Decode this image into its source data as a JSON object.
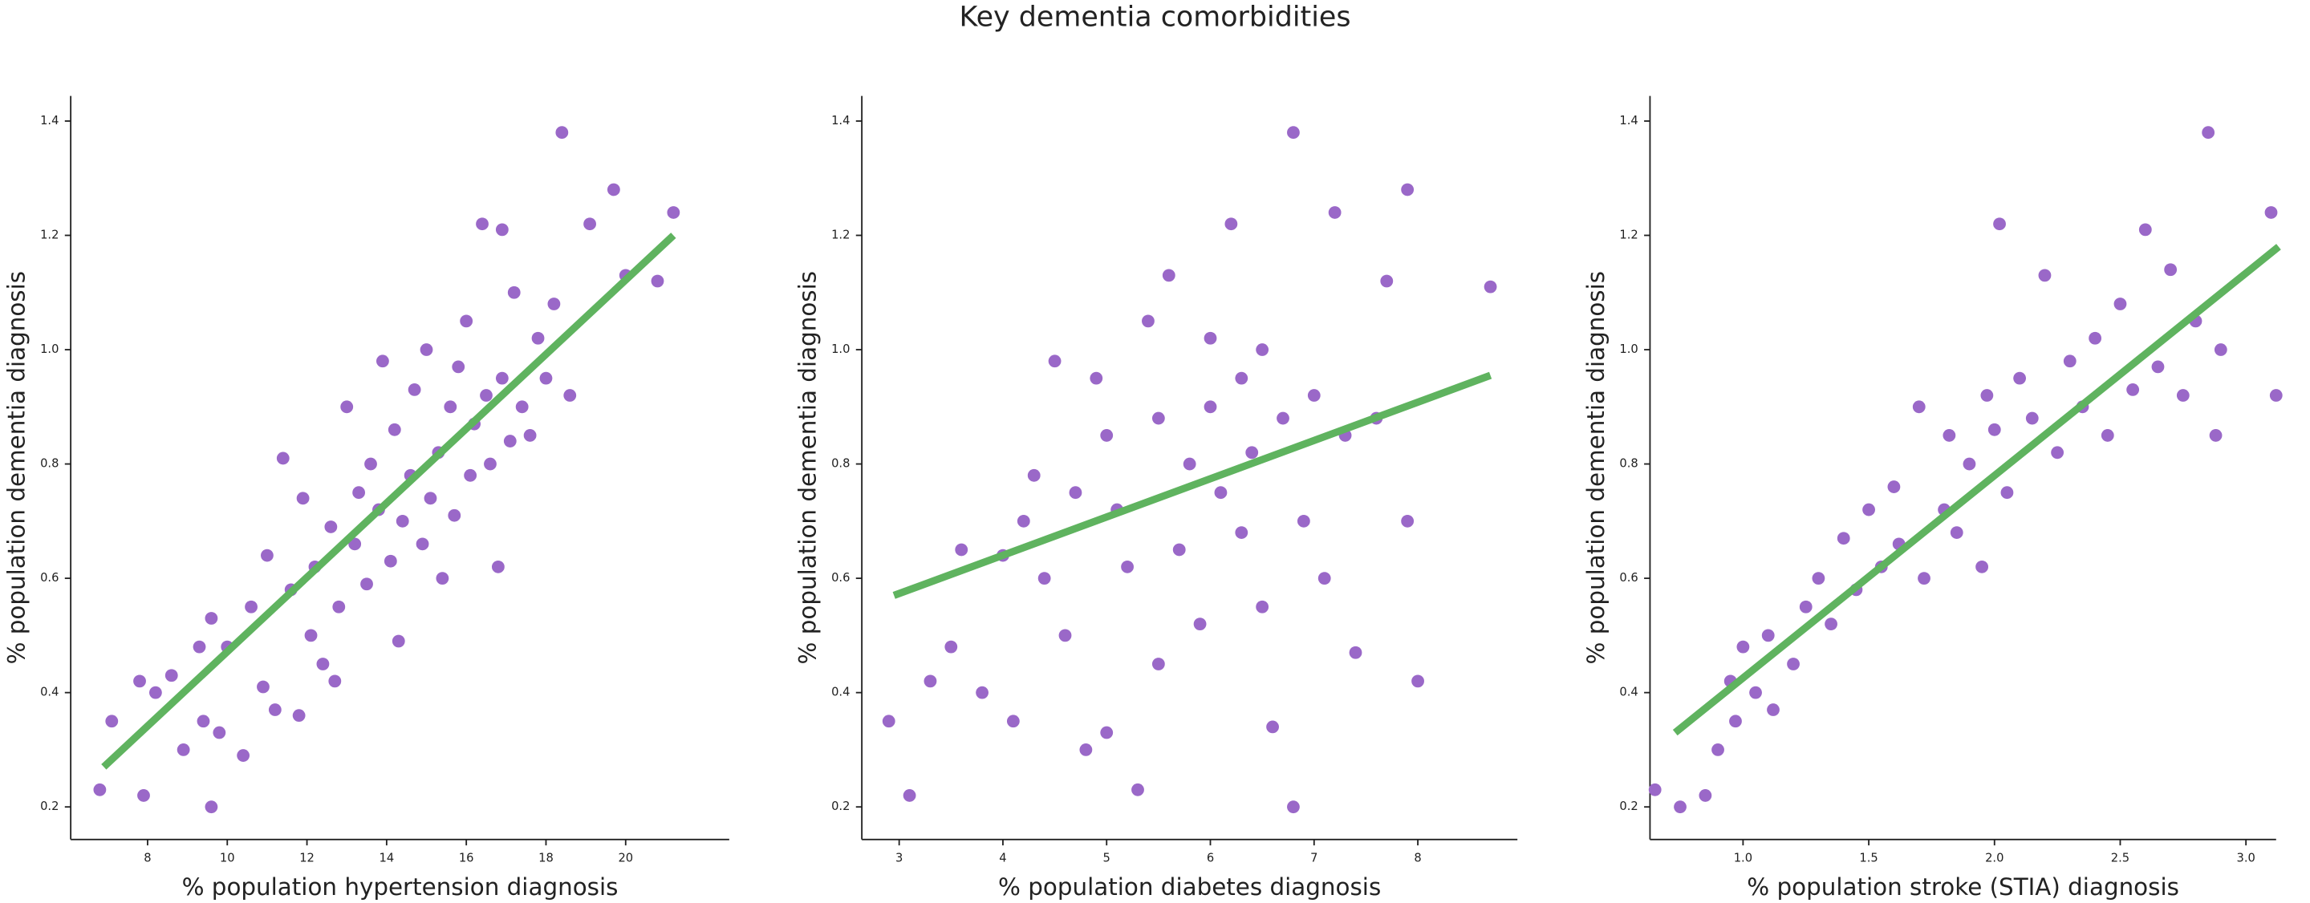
{
  "title": "Key dementia comorbidities",
  "chart_data": [
    {
      "type": "scatter",
      "xlabel": "% population hypertension diagnosis",
      "ylabel": "% population dementia diagnosis",
      "color": "#9a68c8",
      "x": [
        6.8,
        7.1,
        7.9,
        7.8,
        8.2,
        8.6,
        8.9,
        9.3,
        9.4,
        9.6,
        9.6,
        9.8,
        10,
        10.4,
        10.6,
        10.9,
        11,
        11.2,
        11.4,
        11.6,
        11.8,
        11.9,
        12.1,
        12.2,
        12.4,
        12.6,
        12.7,
        12.8,
        13,
        13.2,
        13.3,
        13.5,
        13.6,
        13.8,
        13.9,
        14.1,
        14.2,
        14.3,
        14.4,
        14.6,
        14.7,
        14.9,
        15,
        15.1,
        15.3,
        15.4,
        15.6,
        15.7,
        15.8,
        16,
        16.1,
        16.2,
        16.4,
        16.5,
        16.6,
        16.8,
        16.9,
        16.9,
        17.1,
        17.2,
        17.4,
        17.6,
        17.8,
        18,
        18.2,
        18.4,
        18.6,
        19.1,
        19.7,
        20,
        20.8,
        21.2
      ],
      "y": [
        0.23,
        0.35,
        0.22,
        0.42,
        0.4,
        0.43,
        0.3,
        0.48,
        0.35,
        0.2,
        0.53,
        0.33,
        0.48,
        0.29,
        0.55,
        0.41,
        0.64,
        0.37,
        0.81,
        0.58,
        0.36,
        0.74,
        0.5,
        0.62,
        0.45,
        0.69,
        0.42,
        0.55,
        0.9,
        0.66,
        0.75,
        0.59,
        0.8,
        0.72,
        0.98,
        0.63,
        0.86,
        0.49,
        0.7,
        0.78,
        0.93,
        0.66,
        1.0,
        0.74,
        0.82,
        0.6,
        0.9,
        0.71,
        0.97,
        1.05,
        0.78,
        0.87,
        1.22,
        0.92,
        0.8,
        0.62,
        1.21,
        0.95,
        0.84,
        1.1,
        0.9,
        0.85,
        1.02,
        0.95,
        1.08,
        1.38,
        0.92,
        1.22,
        1.28,
        1.13,
        1.12,
        1.24
      ],
      "trend": {
        "x": [
          6.9,
          21.2
        ],
        "y": [
          0.27,
          1.2
        ],
        "color": "#5fb35f"
      },
      "xlim": [
        6.07,
        22.6
      ],
      "xticks": [
        8,
        10,
        12,
        14,
        16,
        18,
        20
      ],
      "ylim": [
        0.143,
        1.444
      ],
      "yticks": [
        0.2,
        0.4,
        0.6,
        0.8,
        {
          "value": 1,
          "label": "1.0"
        },
        1.2,
        1.4
      ]
    },
    {
      "type": "scatter",
      "xlabel": "% population diabetes diagnosis",
      "ylabel": "% population dementia diagnosis",
      "color": "#9a68c8",
      "x": [
        2.9,
        3.1,
        3.3,
        3.5,
        3.6,
        3.8,
        4.0,
        4.1,
        4.2,
        4.3,
        4.4,
        4.5,
        4.6,
        4.7,
        4.8,
        4.9,
        5.0,
        5.0,
        5.1,
        5.2,
        5.3,
        5.4,
        5.5,
        5.5,
        5.6,
        5.7,
        5.8,
        5.9,
        6.0,
        6.0,
        6.1,
        6.2,
        6.3,
        6.3,
        6.4,
        6.5,
        6.5,
        6.6,
        6.7,
        6.8,
        6.8,
        6.9,
        7.0,
        7.1,
        7.2,
        7.3,
        7.4,
        7.6,
        7.7,
        7.9,
        7.9,
        8.0,
        8.7
      ],
      "y": [
        0.35,
        0.22,
        0.42,
        0.48,
        0.65,
        0.4,
        0.64,
        0.35,
        0.7,
        0.78,
        0.6,
        0.98,
        0.5,
        0.75,
        0.3,
        0.95,
        0.33,
        0.85,
        0.72,
        0.62,
        0.23,
        1.05,
        0.45,
        0.88,
        1.13,
        0.65,
        0.8,
        0.52,
        0.9,
        1.02,
        0.75,
        1.22,
        0.68,
        0.95,
        0.82,
        0.55,
        1.0,
        0.34,
        0.88,
        0.2,
        1.38,
        0.7,
        0.92,
        0.6,
        1.24,
        0.85,
        0.47,
        0.88,
        1.12,
        0.7,
        1.28,
        0.42,
        1.11
      ],
      "trend": {
        "x": [
          2.95,
          8.7
        ],
        "y": [
          0.57,
          0.955
        ],
        "color": "#5fb35f"
      },
      "xlim": [
        2.64,
        8.96
      ],
      "xticks": [
        3,
        4,
        5,
        6,
        7,
        8
      ],
      "ylim": [
        0.143,
        1.444
      ],
      "yticks": [
        0.2,
        0.4,
        0.6,
        0.8,
        {
          "value": 1,
          "label": "1.0"
        },
        1.2,
        1.4
      ]
    },
    {
      "type": "scatter",
      "xlabel": "% population stroke (STIA) diagnosis",
      "ylabel": "% population dementia diagnosis",
      "color": "#9a68c8",
      "x": [
        0.65,
        0.75,
        0.85,
        0.9,
        0.95,
        0.97,
        1.0,
        1.05,
        1.1,
        1.12,
        1.2,
        1.25,
        1.3,
        1.35,
        1.4,
        1.45,
        1.5,
        1.55,
        1.6,
        1.62,
        1.7,
        1.72,
        1.8,
        1.82,
        1.85,
        1.9,
        1.95,
        1.97,
        2.0,
        2.02,
        2.05,
        2.1,
        2.15,
        2.2,
        2.25,
        2.3,
        2.35,
        2.4,
        2.45,
        2.5,
        2.55,
        2.6,
        2.65,
        2.7,
        2.75,
        2.8,
        2.85,
        2.88,
        2.9,
        3.1,
        3.12
      ],
      "y": [
        0.23,
        0.2,
        0.22,
        0.3,
        0.42,
        0.35,
        0.48,
        0.4,
        0.5,
        0.37,
        0.45,
        0.55,
        0.6,
        0.52,
        0.67,
        0.58,
        0.72,
        0.62,
        0.76,
        0.66,
        0.9,
        0.6,
        0.72,
        0.85,
        0.68,
        0.8,
        0.62,
        0.92,
        0.86,
        1.22,
        0.75,
        0.95,
        0.88,
        1.13,
        0.82,
        0.98,
        0.9,
        1.02,
        0.85,
        1.08,
        0.93,
        1.21,
        0.97,
        1.14,
        0.92,
        1.05,
        1.38,
        0.85,
        1.0,
        1.24,
        0.92
      ],
      "trend": {
        "x": [
          0.73,
          3.13
        ],
        "y": [
          0.33,
          1.18
        ],
        "color": "#5fb35f"
      },
      "xlim": [
        0.63,
        3.12
      ],
      "xticks": [
        {
          "value": 1,
          "label": "1.0"
        },
        1.5,
        {
          "value": 2,
          "label": "2.0"
        },
        2.5,
        {
          "value": 3,
          "label": "3.0"
        }
      ],
      "ylim": [
        0.143,
        1.444
      ],
      "yticks": [
        0.2,
        0.4,
        0.6,
        0.8,
        {
          "value": 1,
          "label": "1.0"
        },
        1.2,
        1.4
      ]
    }
  ]
}
